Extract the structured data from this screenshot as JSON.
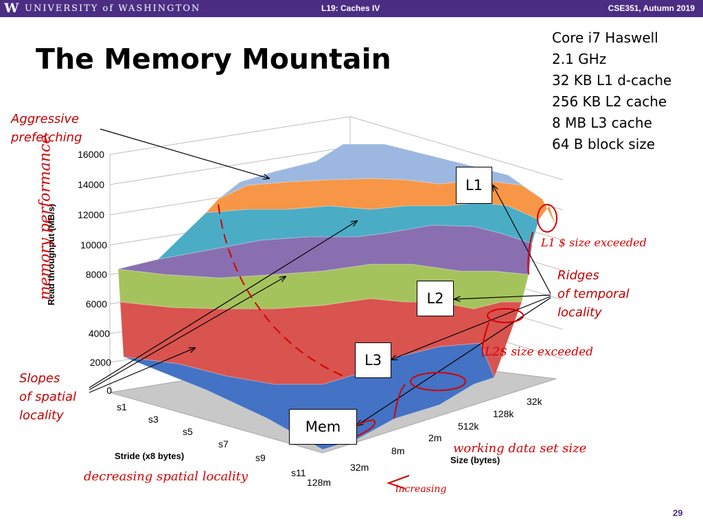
{
  "header": {
    "logo_letter": "W",
    "university": "UNIVERSITY of WASHINGTON",
    "lecture": "L19: Caches IV",
    "course": "CSE351, Autumn 2019"
  },
  "slide": {
    "title": "The Memory Mountain",
    "page_number": "29",
    "specs": [
      "Core i7 Haswell",
      "2.1 GHz",
      "32 KB L1 d-cache",
      "256 KB L2 cache",
      "8 MB L3 cache",
      "64 B block size"
    ],
    "annotations": {
      "aggressive_prefetching": [
        "Aggressive",
        "prefetching"
      ],
      "ridges": [
        "Ridges",
        "of temporal",
        "locality"
      ],
      "slopes": [
        "Slopes",
        "of spatial",
        "locality"
      ]
    },
    "boxes": {
      "l1": "L1",
      "l2": "L2",
      "l3": "L3",
      "mem": "Mem"
    },
    "handwriting": {
      "memory_performance": "memory performance",
      "l1_exceeded": "L1 $ size exceeded",
      "l2_exceeded": "L2$ size exceeded",
      "decreasing": "decreasing spatial locality",
      "working_set": "working data set size",
      "increasing": "increasing"
    }
  },
  "chart_data": {
    "type": "surface",
    "ylabel": "Read throughput (MB/s)",
    "xlabel": "Stride (x8 bytes)",
    "zlabel": "Size (bytes)",
    "yticks": [
      "0",
      "2000",
      "4000",
      "6000",
      "8000",
      "10000",
      "12000",
      "14000",
      "16000"
    ],
    "ylim": [
      0,
      16000
    ],
    "stride_ticks": [
      "s1",
      "s3",
      "s5",
      "s7",
      "s9",
      "s11"
    ],
    "size_ticks": [
      "128m",
      "32m",
      "8m",
      "2m",
      "512k",
      "128k",
      "32k"
    ],
    "bands": [
      {
        "from": 0,
        "to": 2000,
        "color": "#4472c4"
      },
      {
        "from": 2000,
        "to": 4000,
        "color": "#c0504d"
      },
      {
        "from": 4000,
        "to": 6000,
        "color": "#c0504d"
      },
      {
        "from": 6000,
        "to": 8000,
        "color": "#9bbb59"
      },
      {
        "from": 8000,
        "to": 10000,
        "color": "#8064a2"
      },
      {
        "from": 10000,
        "to": 12000,
        "color": "#4bacc6"
      },
      {
        "from": 12000,
        "to": 14000,
        "color": "#f79646"
      },
      {
        "from": 14000,
        "to": 16000,
        "color": "#95b3d7"
      }
    ]
  }
}
